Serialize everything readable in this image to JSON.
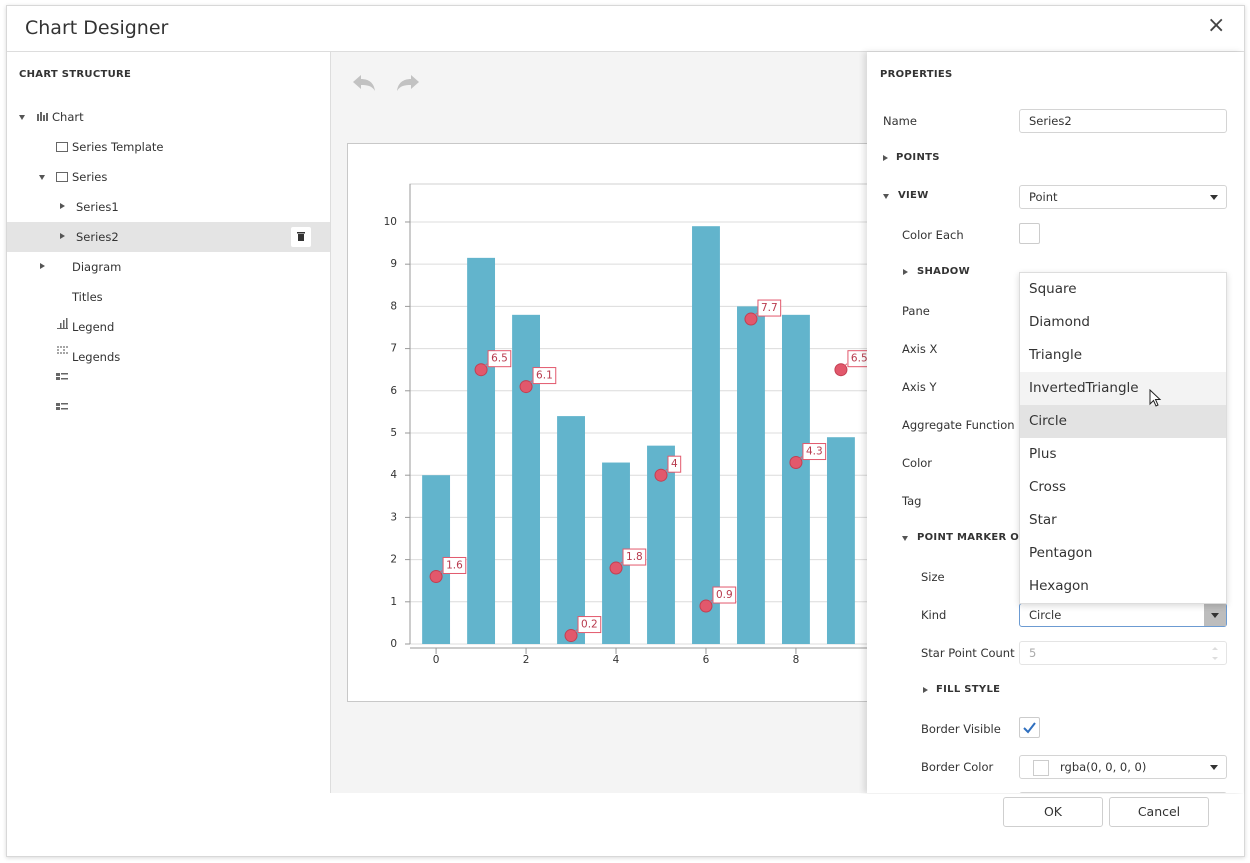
{
  "header": {
    "title": "Chart Designer",
    "close": "×"
  },
  "structure": {
    "title": "CHART STRUCTURE",
    "tree": [
      "Chart",
      "Series Template",
      "Series",
      "Series1",
      "Series2",
      "Diagram",
      "Titles",
      "Legend",
      "Legends"
    ]
  },
  "chart_data": {
    "type": "bar",
    "x": [
      0,
      1,
      2,
      3,
      4,
      5,
      6,
      7,
      8,
      9
    ],
    "series": [
      {
        "type": "bar",
        "color": "#62b4cc",
        "values": [
          4,
          9.15,
          7.8,
          5.4,
          4.3,
          4.7,
          9.9,
          8.0,
          7.8,
          4.9
        ]
      },
      {
        "type": "scatter",
        "color": "#e2586c",
        "values": [
          1.6,
          6.5,
          6.1,
          0.2,
          1.8,
          4,
          0.9,
          7.7,
          4.3,
          6.5
        ]
      }
    ],
    "xlim": [
      -0.58,
      10.58
    ],
    "xticks": [
      0,
      2,
      4,
      6,
      8
    ],
    "ylim": [
      0,
      10.9
    ],
    "yticks": [
      0,
      1,
      2,
      3,
      4,
      5,
      6,
      7,
      8,
      9,
      10
    ],
    "grid": true
  },
  "properties": {
    "title": "PROPERTIES",
    "name": {
      "label": "Name",
      "value": "Series2"
    },
    "points": "POINTS",
    "view": {
      "label": "VIEW",
      "value": "Point"
    },
    "color_each": "Color Each",
    "shadow": "SHADOW",
    "pane": "Pane",
    "axis_x": "Axis X",
    "axis_y": "Axis Y",
    "aggregate_function": "Aggregate Function",
    "color": "Color",
    "tag": "Tag",
    "point_marker_options": "POINT MARKER OPTIONS",
    "size": "Size",
    "kind": {
      "label": "Kind",
      "value": "Circle"
    },
    "star_point_count": {
      "label": "Star Point Count",
      "value": "5"
    },
    "fill_style": "FILL STYLE",
    "border_visible": "Border Visible",
    "border_color": {
      "label": "Border Color",
      "value": "rgba(0, 0, 0, 0)"
    }
  },
  "dropdown": {
    "options": [
      "Square",
      "Diamond",
      "Triangle",
      "InvertedTriangle",
      "Circle",
      "Plus",
      "Cross",
      "Star",
      "Pentagon",
      "Hexagon"
    ]
  },
  "footer": {
    "ok": "OK",
    "cancel": "Cancel"
  }
}
